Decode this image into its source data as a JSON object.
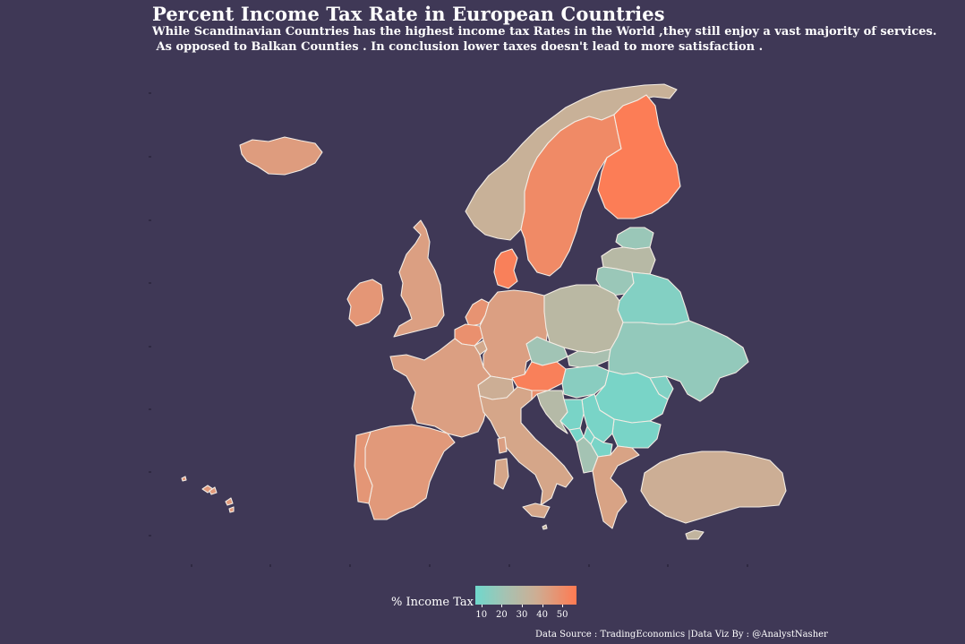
{
  "title": "Percent Income Tax Rate in European Countries",
  "subtitle_lines": [
    "While Scandinavian Countries has the highest income tax Rates in the World ,they still enjoy a vast majority of services.",
    " As opposed to Balkan Counties . In conclusion lower taxes doesn't lead to more satisfaction ."
  ],
  "legend": {
    "title": "% Income Tax",
    "ticks": [
      "10",
      "20",
      "30",
      "40",
      "50"
    ],
    "range": [
      7,
      57
    ],
    "colors": [
      "#6fd8cc",
      "#a6c2b2",
      "#cdae94",
      "#ff7a52"
    ]
  },
  "source": "Data Source : TradingEconomics |Data Viz By : @AnalystNasher",
  "colors": {
    "background": "#3f3856",
    "border": "#f3ece4"
  },
  "chart_data": {
    "type": "choropleth",
    "title": "Percent Income Tax Rate in European Countries",
    "legend_title": "% Income Tax",
    "scale_ticks": [
      10,
      20,
      30,
      40,
      50
    ],
    "regions": [
      {
        "name": "Iceland",
        "value": 46
      },
      {
        "name": "Norway",
        "value": 38
      },
      {
        "name": "Sweden",
        "value": 52
      },
      {
        "name": "Finland",
        "value": 56
      },
      {
        "name": "Denmark",
        "value": 55
      },
      {
        "name": "Estonia",
        "value": 20
      },
      {
        "name": "Latvia",
        "value": 31
      },
      {
        "name": "Lithuania",
        "value": 20
      },
      {
        "name": "Belarus",
        "value": 13
      },
      {
        "name": "United Kingdom",
        "value": 45
      },
      {
        "name": "Ireland",
        "value": 48
      },
      {
        "name": "Netherlands",
        "value": 49
      },
      {
        "name": "Belgium",
        "value": 50
      },
      {
        "name": "Luxembourg",
        "value": 42
      },
      {
        "name": "Germany",
        "value": 45
      },
      {
        "name": "Poland",
        "value": 32
      },
      {
        "name": "Czech Republic",
        "value": 22
      },
      {
        "name": "Slovakia",
        "value": 25
      },
      {
        "name": "Austria",
        "value": 55
      },
      {
        "name": "Switzerland",
        "value": 40
      },
      {
        "name": "Hungary",
        "value": 15
      },
      {
        "name": "Ukraine",
        "value": 18
      },
      {
        "name": "Moldova",
        "value": 12
      },
      {
        "name": "Romania",
        "value": 10
      },
      {
        "name": "Bulgaria",
        "value": 10
      },
      {
        "name": "France",
        "value": 45
      },
      {
        "name": "Spain",
        "value": 47
      },
      {
        "name": "Portugal",
        "value": 48
      },
      {
        "name": "Italy",
        "value": 43
      },
      {
        "name": "Slovenia",
        "value": 50
      },
      {
        "name": "Croatia",
        "value": 30
      },
      {
        "name": "Bosnia and Herzegovina",
        "value": 10
      },
      {
        "name": "Serbia",
        "value": 10
      },
      {
        "name": "Montenegro",
        "value": 9
      },
      {
        "name": "Kosovo",
        "value": 10
      },
      {
        "name": "North Macedonia",
        "value": 10
      },
      {
        "name": "Albania",
        "value": 23
      },
      {
        "name": "Greece",
        "value": 44
      },
      {
        "name": "Turkey",
        "value": 40
      },
      {
        "name": "Cyprus",
        "value": 35
      },
      {
        "name": "Malta",
        "value": 35
      }
    ]
  }
}
